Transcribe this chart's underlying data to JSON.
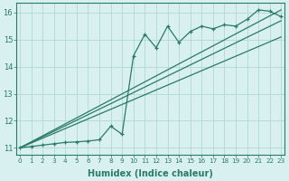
{
  "xlabel": "Humidex (Indice chaleur)",
  "bg_color": "#d8f0f0",
  "grid_color": "#b0d8d4",
  "line_color": "#2a7a6a",
  "x_data": [
    0,
    1,
    2,
    3,
    4,
    5,
    6,
    7,
    8,
    9,
    10,
    11,
    12,
    13,
    14,
    15,
    16,
    17,
    18,
    19,
    20,
    21,
    22,
    23
  ],
  "y_main": [
    11.0,
    11.05,
    11.1,
    11.15,
    11.2,
    11.22,
    11.25,
    11.3,
    11.8,
    11.5,
    14.4,
    15.2,
    14.7,
    15.5,
    14.9,
    15.3,
    15.5,
    15.4,
    15.55,
    15.5,
    15.75,
    16.1,
    16.05,
    15.85
  ],
  "y_line1_start": 11.0,
  "y_line1_end": 16.1,
  "y_line2_start": 11.0,
  "y_line2_end": 15.7,
  "y_line3_start": 11.0,
  "y_line3_end": 15.1,
  "ylim": [
    10.75,
    16.35
  ],
  "xlim": [
    -0.3,
    23.3
  ],
  "yticks": [
    11,
    12,
    13,
    14,
    15,
    16
  ],
  "xticks": [
    0,
    1,
    2,
    3,
    4,
    5,
    6,
    7,
    8,
    9,
    10,
    11,
    12,
    13,
    14,
    15,
    16,
    17,
    18,
    19,
    20,
    21,
    22,
    23
  ]
}
